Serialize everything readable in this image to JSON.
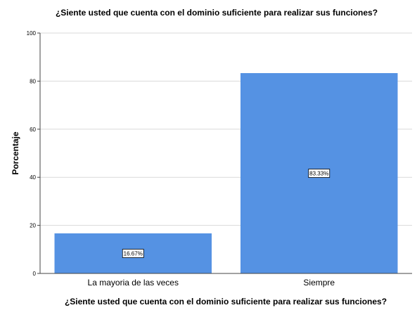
{
  "chart_data": {
    "type": "bar",
    "title": "¿Siente usted que cuenta con el dominio suficiente para realizar sus funciones?",
    "xlabel": "¿Siente usted que cuenta con el dominio suficiente para realizar sus funciones?",
    "ylabel": "Porcentaje",
    "categories": [
      "La mayoria de las veces",
      "Siempre"
    ],
    "values": [
      16.67,
      83.33
    ],
    "data_labels": [
      "16.67%",
      "83.33%"
    ],
    "ylim": [
      0,
      100
    ],
    "yticks": [
      0,
      20,
      40,
      60,
      80,
      100
    ],
    "grid": true,
    "bar_color": "#5592e3",
    "legend": "none"
  }
}
